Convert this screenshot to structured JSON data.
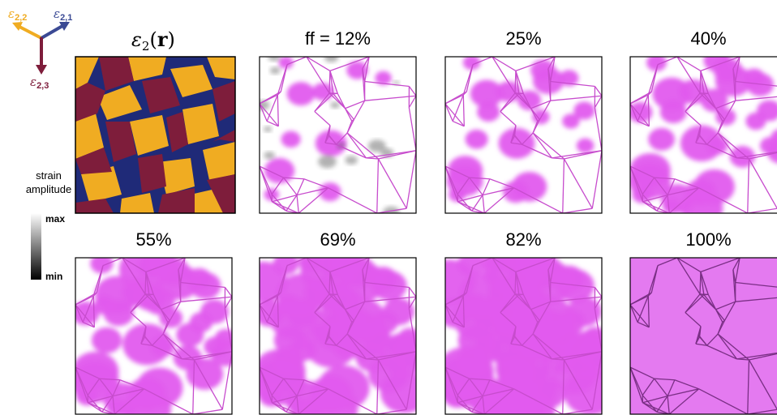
{
  "colors": {
    "orange": "#F0AC22",
    "navy": "#1F2A78",
    "maroon": "#7E1D3B",
    "vec21": "#3B4A94",
    "magenta": "#E25BEE",
    "magenta_fill": "#E47AF0",
    "line": "#C74CCD",
    "line_dark": "#7A2F85",
    "gray_patch": "#555555"
  },
  "axes": {
    "e22": {
      "base": "ε",
      "sub": "2,2"
    },
    "e21": {
      "base": "ε",
      "sub": "2,1"
    },
    "e23": {
      "base": "ε",
      "sub": "2,3"
    }
  },
  "main_title": {
    "eps": "ε",
    "sub": "2",
    "paren_open": "(",
    "r": "r",
    "paren_close": ")"
  },
  "colorbar": {
    "title_line1": "strain",
    "title_line2": "amplitude",
    "max": "max",
    "min": "min"
  },
  "panels": [
    {
      "label": "ff = 12%",
      "ff": 0.12
    },
    {
      "label": "25%",
      "ff": 0.25
    },
    {
      "label": "40%",
      "ff": 0.4
    },
    {
      "label": "55%",
      "ff": 0.55
    },
    {
      "label": "69%",
      "ff": 0.69
    },
    {
      "label": "82%",
      "ff": 0.82
    },
    {
      "label": "100%",
      "ff": 1.0
    }
  ]
}
